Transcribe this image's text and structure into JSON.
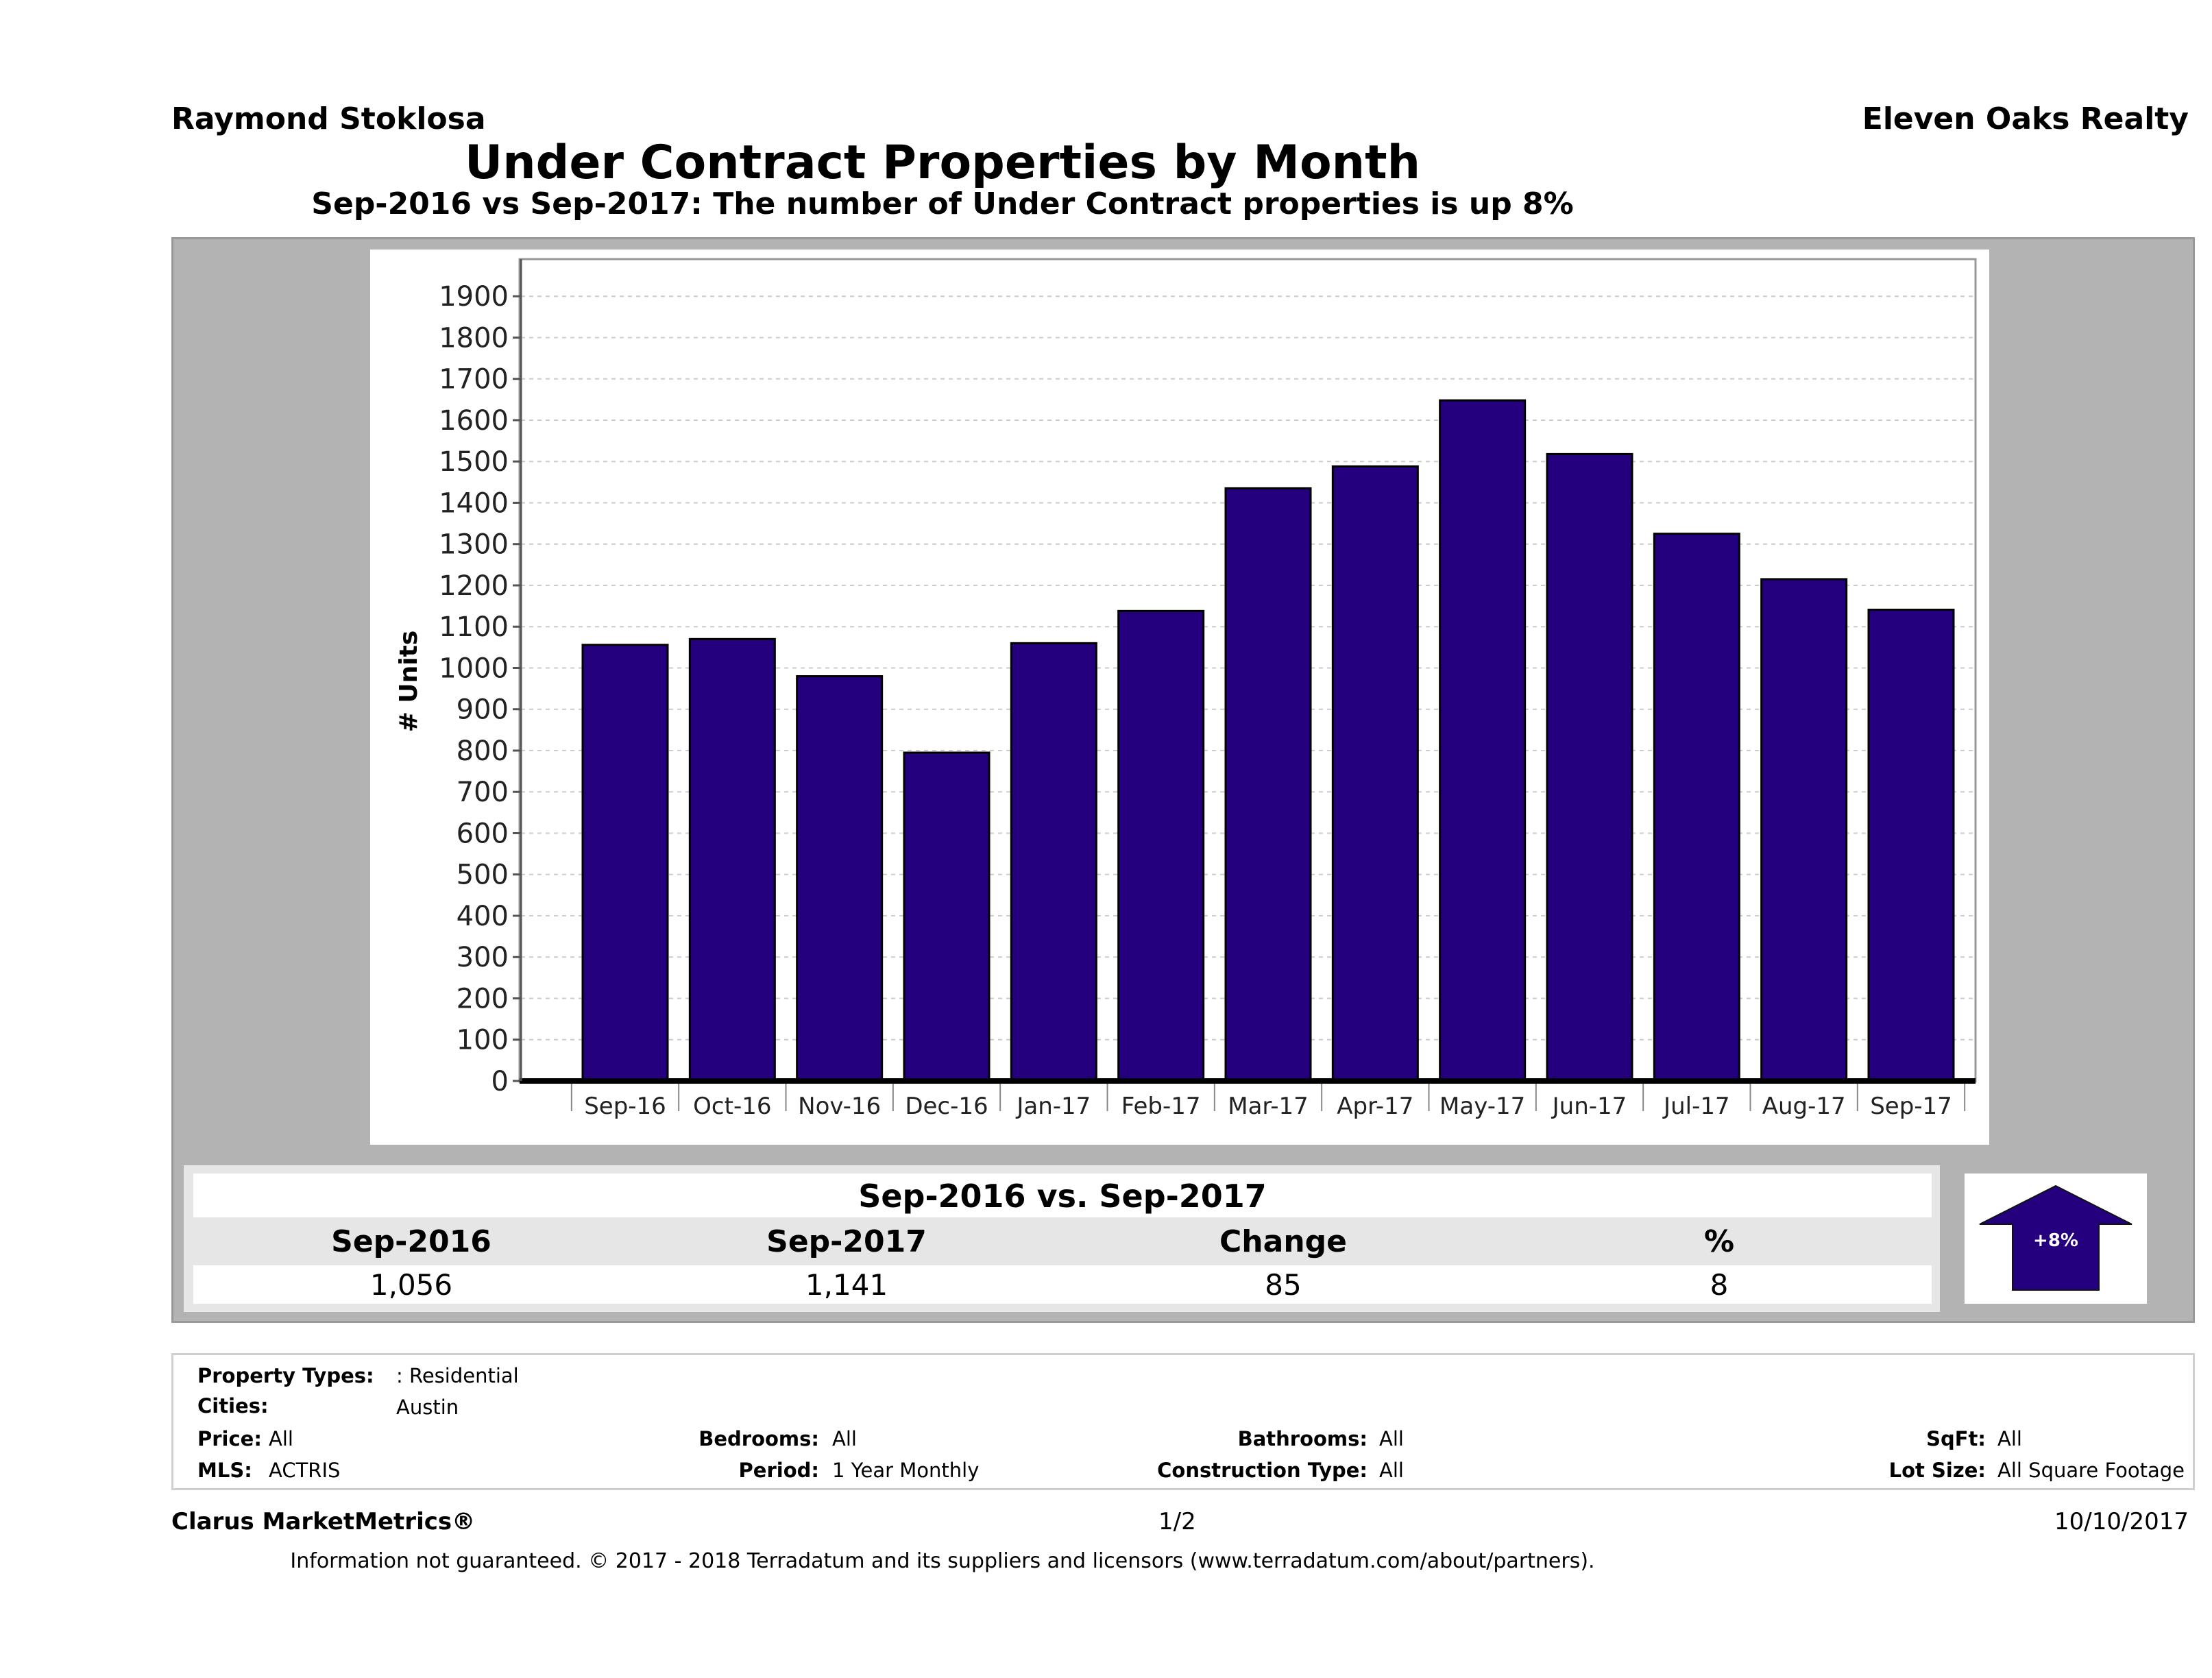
{
  "header": {
    "agent": "Raymond Stoklosa",
    "company": "Eleven Oaks Realty",
    "title": "Under Contract Properties by Month",
    "subtitle": "Sep-2016 vs Sep-2017: The number of Under Contract  properties is up 8%"
  },
  "chart_data": {
    "type": "bar",
    "categories": [
      "Sep-16",
      "Oct-16",
      "Nov-16",
      "Dec-16",
      "Jan-17",
      "Feb-17",
      "Mar-17",
      "Apr-17",
      "May-17",
      "Jun-17",
      "Jul-17",
      "Aug-17",
      "Sep-17"
    ],
    "values": [
      1056,
      1070,
      980,
      795,
      1060,
      1138,
      1435,
      1488,
      1648,
      1518,
      1325,
      1215,
      1141
    ],
    "ylabel": "# Units",
    "xlabel": "",
    "yticks": [
      0,
      100,
      200,
      300,
      400,
      500,
      600,
      700,
      800,
      900,
      1000,
      1100,
      1200,
      1300,
      1400,
      1500,
      1600,
      1700,
      1800,
      1900
    ],
    "ylim": [
      0,
      1990
    ],
    "grid": true,
    "bar_color": "#24007f"
  },
  "comparison": {
    "title": "Sep-2016 vs. Sep-2017",
    "headers": [
      "Sep-2016",
      "Sep-2017",
      "Change",
      "%"
    ],
    "values": [
      "1,056",
      "1,141",
      "85",
      "8"
    ],
    "arrow_label": "+8%",
    "arrow_direction": "up"
  },
  "filters": {
    "property_types_label": "Property Types:",
    "property_types_value": ": Residential",
    "cities_label": "Cities:",
    "cities_value": "Austin",
    "price_label": "Price:",
    "price_value": "All",
    "bedrooms_label": "Bedrooms:",
    "bedrooms_value": "All",
    "bathrooms_label": "Bathrooms:",
    "bathrooms_value": "All",
    "sqft_label": "SqFt:",
    "sqft_value": "All",
    "mls_label": "MLS:",
    "mls_value": "ACTRIS",
    "period_label": "Period:",
    "period_value": "1 Year Monthly",
    "construction_label": "Construction Type:",
    "construction_value": "All",
    "lot_label": "Lot Size:",
    "lot_value": "All Square Footage"
  },
  "footer": {
    "brand": "Clarus MarketMetrics®",
    "page": "1/2",
    "date": "10/10/2017",
    "disclaimer": "Information not guaranteed. © 2017 - 2018 Terradatum and its suppliers and licensors (www.terradatum.com/about/partners)."
  }
}
